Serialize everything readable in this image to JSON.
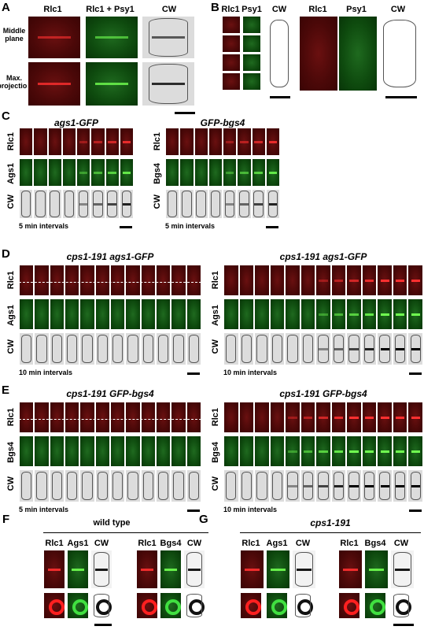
{
  "panels": {
    "A": {
      "label": "A",
      "columns": [
        "Rlc1",
        "Rlc1 + Psy1",
        "CW"
      ],
      "rows": [
        "Middle plane",
        "Max. projection"
      ]
    },
    "B": {
      "label": "B",
      "columns": [
        "Rlc1",
        "Psy1",
        "CW",
        "Rlc1",
        "Psy1",
        "CW"
      ]
    },
    "C": {
      "label": "C",
      "left": {
        "title": "ags1-GFP",
        "rows": [
          "Rlc1",
          "Ags1",
          "CW"
        ],
        "interval": "5 min intervals"
      },
      "right": {
        "title": "GFP-bgs4",
        "rows": [
          "Rlc1",
          "Bgs4",
          "CW"
        ],
        "interval": "5 min intervals"
      }
    },
    "D": {
      "label": "D",
      "left": {
        "title": "cps1-191 ags1-GFP",
        "rows": [
          "Rlc1",
          "Ags1",
          "CW"
        ],
        "interval": "10 min intervals"
      },
      "right": {
        "title": "cps1-191 ags1-GFP",
        "rows": [
          "Rlc1",
          "Ags1",
          "CW"
        ],
        "interval": "10 min intervals"
      }
    },
    "E": {
      "label": "E",
      "left": {
        "title": "cps1-191 GFP-bgs4",
        "rows": [
          "Rlc1",
          "Bgs4",
          "CW"
        ],
        "interval": "5 min intervals"
      },
      "right": {
        "title": "cps1-191 GFP-bgs4",
        "rows": [
          "Rlc1",
          "Bgs4",
          "CW"
        ],
        "interval": "10 min intervals"
      }
    },
    "F": {
      "label": "F",
      "title": "wild type",
      "left": [
        "Rlc1",
        "Ags1",
        "CW"
      ],
      "right": [
        "Rlc1",
        "Bgs4",
        "CW"
      ]
    },
    "G": {
      "label": "G",
      "title": "cps1-191",
      "left": [
        "Rlc1",
        "Ags1",
        "CW"
      ],
      "right": [
        "Rlc1",
        "Bgs4",
        "CW"
      ]
    }
  }
}
